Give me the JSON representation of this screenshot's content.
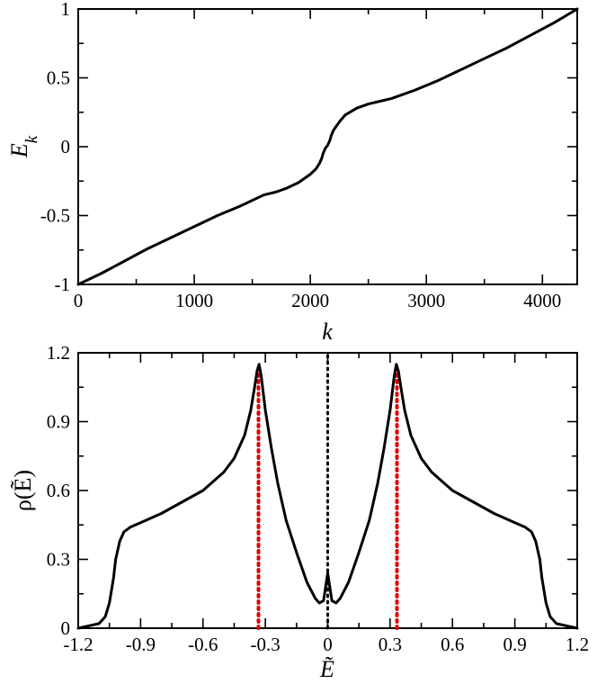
{
  "chart_data": [
    {
      "type": "line",
      "xlabel": "k",
      "ylabel": "E",
      "ylabel_subscript": "k",
      "xlim": [
        0,
        4300
      ],
      "ylim": [
        -1,
        1
      ],
      "xticks": [
        0,
        1000,
        2000,
        3000,
        4000
      ],
      "xtick_labels": [
        "0",
        "1000",
        "2000",
        "3000",
        "4000"
      ],
      "yticks": [
        -1,
        -0.5,
        0,
        0.5,
        1
      ],
      "ytick_labels": [
        "-1",
        "-0.5",
        "0",
        "0.5",
        "1"
      ],
      "series": [
        {
          "name": "E_k",
          "color": "#000000",
          "x": [
            0,
            200,
            400,
            600,
            800,
            1000,
            1200,
            1400,
            1600,
            1700,
            1800,
            1900,
            2000,
            2050,
            2080,
            2100,
            2110,
            2120,
            2130,
            2140,
            2150,
            2160,
            2170,
            2180,
            2200,
            2250,
            2300,
            2400,
            2500,
            2600,
            2700,
            2900,
            3100,
            3300,
            3500,
            3700,
            3900,
            4100,
            4300
          ],
          "y": [
            -1.0,
            -0.92,
            -0.83,
            -0.74,
            -0.66,
            -0.58,
            -0.5,
            -0.43,
            -0.35,
            -0.33,
            -0.3,
            -0.26,
            -0.2,
            -0.16,
            -0.12,
            -0.08,
            -0.05,
            -0.03,
            -0.01,
            0.0,
            0.01,
            0.03,
            0.05,
            0.08,
            0.12,
            0.18,
            0.23,
            0.28,
            0.31,
            0.33,
            0.35,
            0.41,
            0.48,
            0.56,
            0.64,
            0.72,
            0.81,
            0.9,
            1.0
          ]
        }
      ]
    },
    {
      "type": "line",
      "xlabel": "Ẽ",
      "ylabel": "ρ(Ẽ)",
      "xlim": [
        -1.2,
        1.2
      ],
      "ylim": [
        0,
        1.2
      ],
      "xticks": [
        -1.2,
        -0.9,
        -0.6,
        -0.3,
        0,
        0.3,
        0.6,
        0.9,
        1.2
      ],
      "xtick_labels": [
        "-1.2",
        "-0.9",
        "-0.6",
        "-0.3",
        "0",
        "0.3",
        "0.6",
        "0.9",
        "1.2"
      ],
      "yticks": [
        0,
        0.3,
        0.6,
        0.9,
        1.2
      ],
      "ytick_labels": [
        "0",
        "0.3",
        "0.6",
        "0.9",
        "1.2"
      ],
      "series": [
        {
          "name": "rho",
          "color": "#000000",
          "x": [
            -1.2,
            -1.15,
            -1.1,
            -1.07,
            -1.05,
            -1.03,
            -1.02,
            -1.0,
            -0.98,
            -0.95,
            -0.9,
            -0.8,
            -0.7,
            -0.6,
            -0.5,
            -0.45,
            -0.4,
            -0.37,
            -0.35,
            -0.34,
            -0.33,
            -0.32,
            -0.3,
            -0.27,
            -0.24,
            -0.2,
            -0.15,
            -0.1,
            -0.06,
            -0.04,
            -0.02,
            -0.01,
            0.0,
            0.01,
            0.02,
            0.04,
            0.06,
            0.1,
            0.15,
            0.2,
            0.24,
            0.27,
            0.3,
            0.32,
            0.33,
            0.34,
            0.35,
            0.37,
            0.4,
            0.45,
            0.5,
            0.6,
            0.7,
            0.8,
            0.9,
            0.95,
            0.98,
            1.0,
            1.02,
            1.03,
            1.05,
            1.07,
            1.1,
            1.15,
            1.2
          ],
          "y": [
            0.0,
            0.01,
            0.02,
            0.05,
            0.11,
            0.22,
            0.3,
            0.38,
            0.42,
            0.44,
            0.46,
            0.5,
            0.55,
            0.6,
            0.68,
            0.74,
            0.84,
            0.95,
            1.06,
            1.12,
            1.15,
            1.1,
            0.95,
            0.78,
            0.63,
            0.47,
            0.33,
            0.2,
            0.13,
            0.11,
            0.12,
            0.18,
            0.24,
            0.18,
            0.12,
            0.11,
            0.13,
            0.2,
            0.33,
            0.47,
            0.63,
            0.78,
            0.95,
            1.1,
            1.15,
            1.12,
            1.06,
            0.95,
            0.84,
            0.74,
            0.68,
            0.6,
            0.55,
            0.5,
            0.46,
            0.44,
            0.42,
            0.38,
            0.3,
            0.22,
            0.11,
            0.05,
            0.02,
            0.01,
            0.0
          ]
        }
      ],
      "reference_lines": [
        {
          "x": -0.333,
          "y_top": 1.15,
          "color": "#e00000",
          "style": "dotted"
        },
        {
          "x": 0.0,
          "y_top": 1.2,
          "color": "#000000",
          "style": "dotted"
        },
        {
          "x": 0.333,
          "y_top": 1.15,
          "color": "#e00000",
          "style": "dotted"
        }
      ]
    }
  ]
}
